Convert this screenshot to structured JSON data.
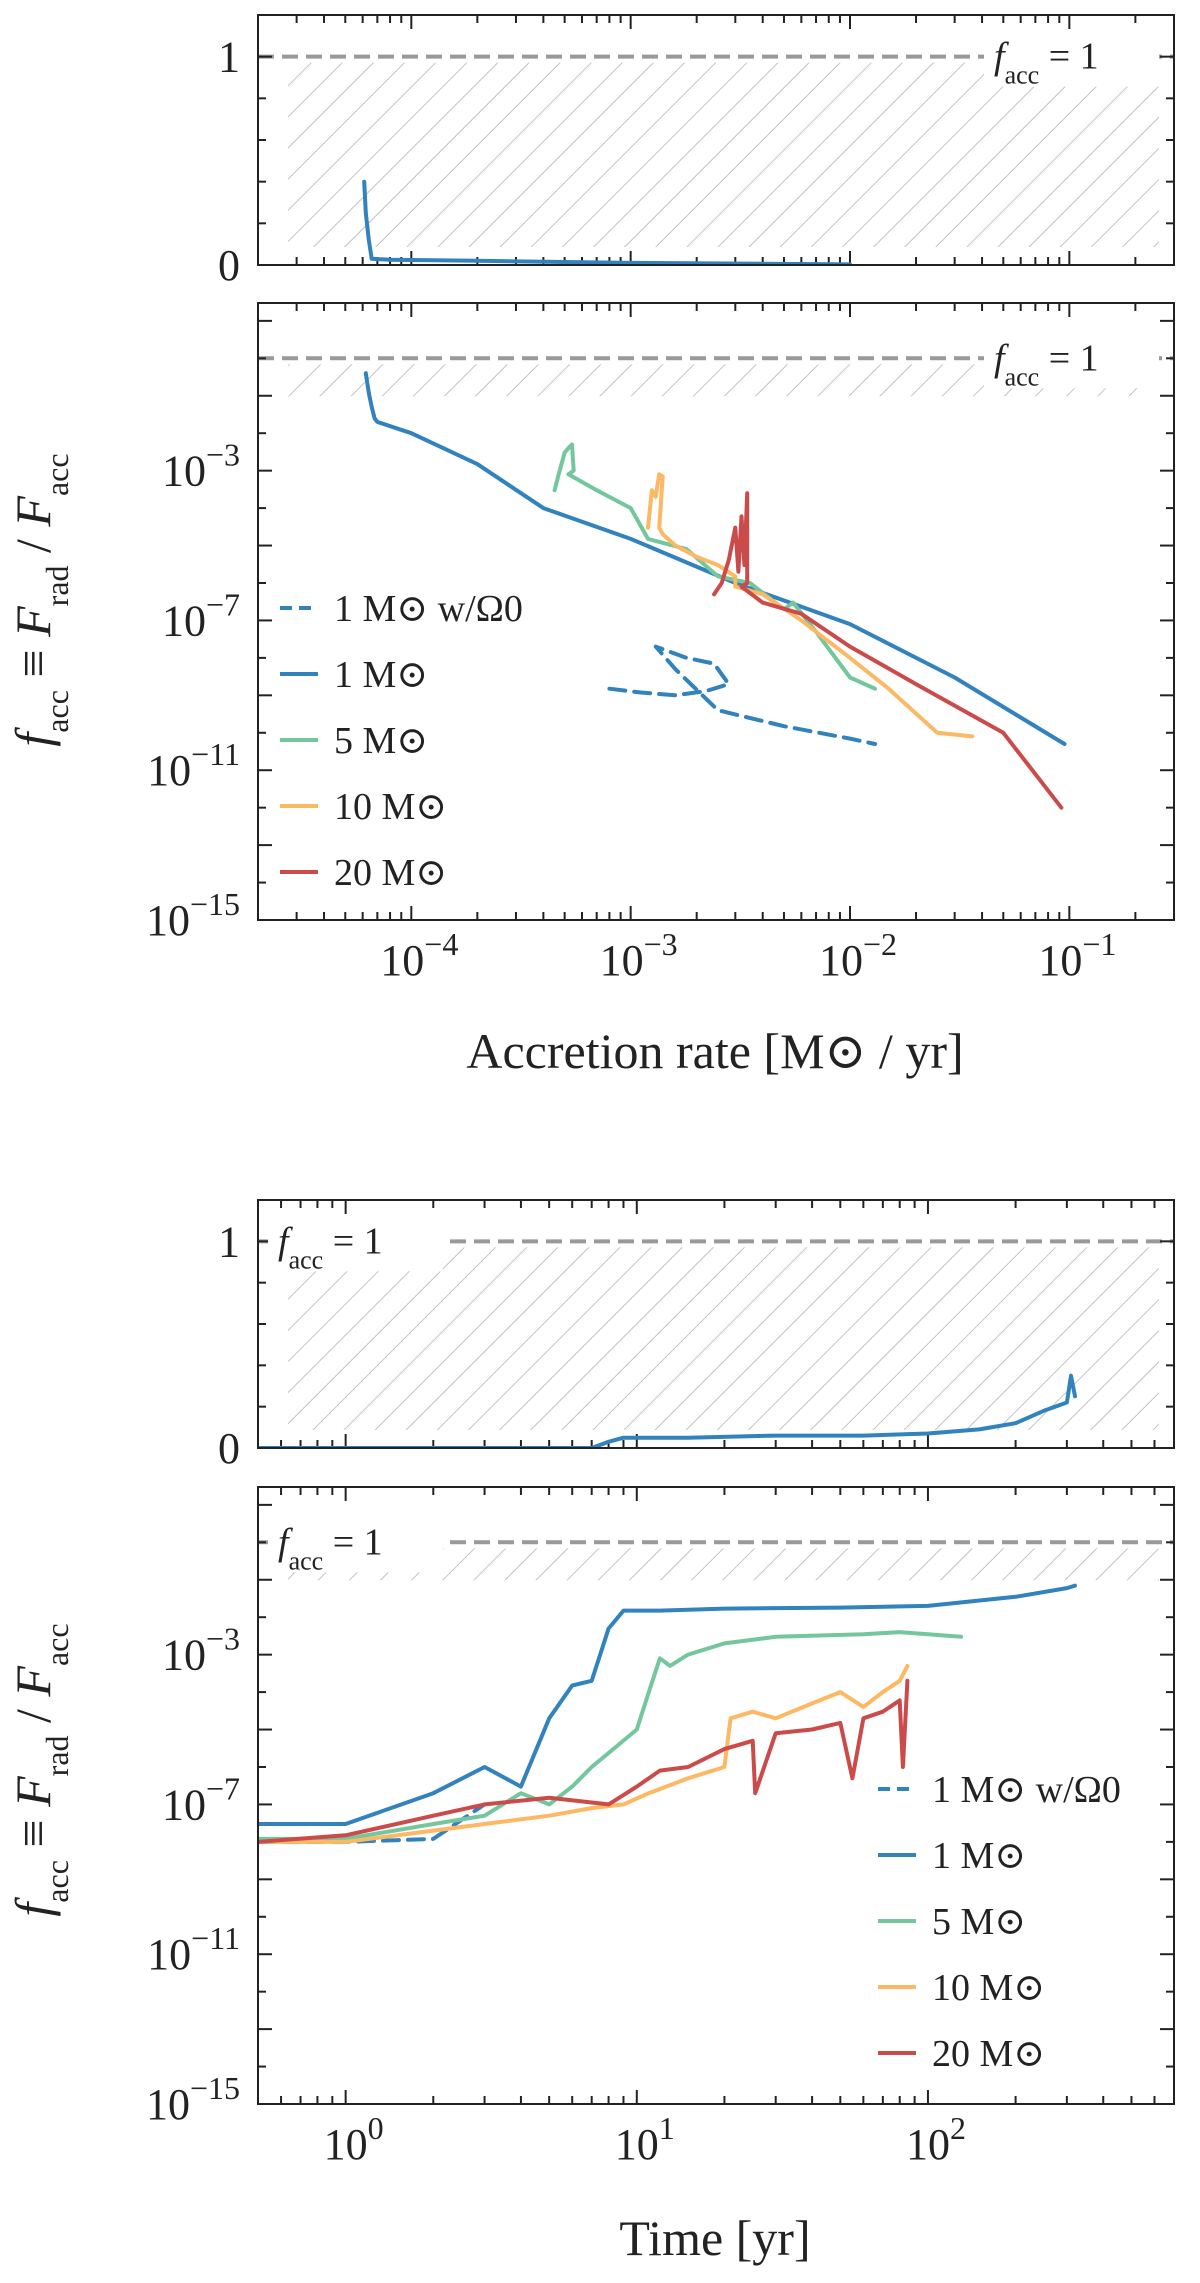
{
  "colors": {
    "blue": "#3182bd",
    "green": "#74c69d",
    "orange": "#fdb863",
    "red": "#cb4b4b",
    "threshold": "#999999",
    "hatch": "#aaaaaa"
  },
  "chart_data": [
    {
      "id": "acc_linear",
      "type": "line",
      "xscale": "log",
      "yscale": "linear",
      "xlim": [
        2e-05,
        0.3
      ],
      "ylim": [
        0,
        1.2
      ],
      "yticks": [
        {
          "v": 0,
          "label": "0"
        },
        {
          "v": 1,
          "label": "1"
        }
      ],
      "threshold": {
        "value": 1,
        "label_base": "f",
        "label_sub": "acc",
        "label_tail": " = 1",
        "label_position": "right"
      },
      "series": [
        {
          "name": "1 M⊙",
          "color": "blue",
          "dash": "",
          "x": [
            6.1e-05,
            6.2e-05,
            6.4e-05,
            6.6e-05,
            8e-05,
            0.0002,
            0.001,
            0.01
          ],
          "y": [
            0.4,
            0.25,
            0.12,
            0.03,
            0.025,
            0.02,
            0.01,
            0.003
          ]
        }
      ]
    },
    {
      "id": "acc_log",
      "type": "line",
      "xscale": "log",
      "yscale": "log",
      "xlim": [
        2e-05,
        0.3
      ],
      "ylim": [
        1e-15,
        30
      ],
      "xticks": [
        {
          "v": 0.0001,
          "base": "10",
          "exp": "−4"
        },
        {
          "v": 0.001,
          "base": "10",
          "exp": "−3"
        },
        {
          "v": 0.01,
          "base": "10",
          "exp": "−2"
        },
        {
          "v": 0.1,
          "base": "10",
          "exp": "−1"
        }
      ],
      "yticks": [
        {
          "v": 0.001,
          "base": "10",
          "exp": "−3"
        },
        {
          "v": 1e-07,
          "base": "10",
          "exp": "−7"
        },
        {
          "v": 1e-11,
          "base": "10",
          "exp": "−11"
        },
        {
          "v": 1e-15,
          "base": "10",
          "exp": "−15"
        }
      ],
      "xlabel": "Accretion rate [M⊙ / yr]",
      "ylabel": {
        "f": "f",
        "sub1": "acc",
        "mid": " ≡ ",
        "F1": "F",
        "sub2": "rad",
        "slash": " / ",
        "F2": "F",
        "sub3": "acc"
      },
      "threshold": {
        "value": 1,
        "label_base": "f",
        "label_sub": "acc",
        "label_tail": " = 1",
        "label_position": "right"
      },
      "legend": {
        "position": "center-left",
        "entries": [
          "1 M⊙ w/Ω0",
          "1 M⊙",
          "5 M⊙",
          "10 M⊙",
          "20 M⊙"
        ]
      },
      "series": [
        {
          "name": "1 M⊙ w/Ω0",
          "color": "blue",
          "dash": "16,9",
          "x": [
            0.0008,
            0.0011,
            0.0016,
            0.0022,
            0.0028,
            0.0024,
            0.0018,
            0.0013,
            0.0016,
            0.0025,
            0.005,
            0.01,
            0.013
          ],
          "y": [
            1.5e-09,
            1.2e-09,
            1e-09,
            1.3e-09,
            2e-09,
            7e-09,
            1e-08,
            2e-08,
            5e-09,
            4e-10,
            1.5e-10,
            7e-11,
            5e-11
          ]
        },
        {
          "name": "1 M⊙",
          "color": "blue",
          "dash": "",
          "x": [
            6.2e-05,
            6.4e-05,
            6.6e-05,
            6.8e-05,
            7e-05,
            0.0001,
            0.0002,
            0.0004,
            0.001,
            0.003,
            0.01,
            0.03,
            0.095
          ],
          "y": [
            0.4,
            0.12,
            0.05,
            0.025,
            0.02,
            0.01,
            0.0015,
            0.0001,
            1.5e-05,
            1e-06,
            8e-08,
            3e-09,
            5e-11
          ]
        },
        {
          "name": "5 M⊙",
          "color": "green",
          "dash": "",
          "x": [
            0.00045,
            0.00047,
            0.0005,
            0.00052,
            0.00054,
            0.00055,
            0.00052,
            0.0007,
            0.001,
            0.0012,
            0.0018,
            0.0025,
            0.0035,
            0.005,
            0.0055,
            0.007,
            0.01,
            0.013
          ],
          "y": [
            0.0003,
            0.0008,
            0.003,
            0.004,
            0.005,
            0.001,
            0.0008,
            0.0003,
            0.0001,
            1.5e-05,
            8e-06,
            1.5e-06,
            1e-06,
            2e-07,
            3e-07,
            5e-08,
            3e-09,
            1.5e-09
          ]
        },
        {
          "name": "10 M⊙",
          "color": "orange",
          "dash": "",
          "x": [
            0.0012,
            0.00125,
            0.0013,
            0.00135,
            0.0014,
            0.00135,
            0.0014,
            0.0016,
            0.002,
            0.0025,
            0.003,
            0.003,
            0.004,
            0.006,
            0.01,
            0.015,
            0.025,
            0.036
          ],
          "y": [
            3e-05,
            0.0003,
            0.0002,
            0.0008,
            0.0007,
            3e-05,
            2e-05,
            1e-05,
            5e-06,
            3e-06,
            1.5e-06,
            8e-07,
            5e-07,
            1e-07,
            1e-08,
            1.5e-09,
            1e-10,
            8e-11
          ]
        },
        {
          "name": "20 M⊙",
          "color": "red",
          "dash": "",
          "x": [
            0.0024,
            0.0026,
            0.0028,
            0.003,
            0.0031,
            0.0032,
            0.0033,
            0.0034,
            0.0034,
            0.0032,
            0.004,
            0.006,
            0.01,
            0.02,
            0.05,
            0.092
          ],
          "y": [
            5e-07,
            1e-06,
            4e-06,
            3e-05,
            2e-06,
            6e-05,
            3e-06,
            0.00025,
            1e-06,
            8e-07,
            3e-07,
            1.5e-07,
            2e-08,
            2e-09,
            1e-10,
            1e-12
          ]
        }
      ]
    },
    {
      "id": "time_linear",
      "type": "line",
      "xscale": "log",
      "yscale": "linear",
      "xlim": [
        0.5,
        700
      ],
      "ylim": [
        0,
        1.2
      ],
      "yticks": [
        {
          "v": 0,
          "label": "0"
        },
        {
          "v": 1,
          "label": "1"
        }
      ],
      "threshold": {
        "value": 1,
        "label_base": "f",
        "label_sub": "acc",
        "label_tail": " = 1",
        "label_position": "left"
      },
      "series": [
        {
          "name": "1 M⊙",
          "color": "blue",
          "dash": "",
          "x": [
            0.5,
            1,
            3,
            7,
            8,
            9,
            15,
            30,
            60,
            100,
            150,
            200,
            250,
            300,
            310,
            320
          ],
          "y": [
            0,
            0,
            0,
            0,
            0.03,
            0.05,
            0.05,
            0.06,
            0.06,
            0.07,
            0.09,
            0.12,
            0.18,
            0.22,
            0.35,
            0.25
          ]
        }
      ]
    },
    {
      "id": "time_log",
      "type": "line",
      "xscale": "log",
      "yscale": "log",
      "xlim": [
        0.5,
        700
      ],
      "ylim": [
        1e-15,
        30
      ],
      "xticks": [
        {
          "v": 1,
          "base": "10",
          "exp": "0"
        },
        {
          "v": 10,
          "base": "10",
          "exp": "1"
        },
        {
          "v": 100,
          "base": "10",
          "exp": "2"
        }
      ],
      "yticks": [
        {
          "v": 0.001,
          "base": "10",
          "exp": "−3"
        },
        {
          "v": 1e-07,
          "base": "10",
          "exp": "−7"
        },
        {
          "v": 1e-11,
          "base": "10",
          "exp": "−11"
        },
        {
          "v": 1e-15,
          "base": "10",
          "exp": "−15"
        }
      ],
      "xlabel": "Time [yr]",
      "ylabel": {
        "f": "f",
        "sub1": "acc",
        "mid": " ≡ ",
        "F1": "F",
        "sub2": "rad",
        "slash": " / ",
        "F2": "F",
        "sub3": "acc"
      },
      "threshold": {
        "value": 1,
        "label_base": "f",
        "label_sub": "acc",
        "label_tail": " = 1",
        "label_position": "left"
      },
      "legend": {
        "position": "lower-right",
        "entries": [
          "1 M⊙ w/Ω0",
          "1 M⊙",
          "5 M⊙",
          "10 M⊙",
          "20 M⊙"
        ]
      },
      "series": [
        {
          "name": "1 M⊙ w/Ω0",
          "color": "blue",
          "dash": "16,9",
          "x": [
            0.5,
            1,
            2,
            3
          ],
          "y": [
            1e-08,
            1e-08,
            1.2e-08,
            1e-07
          ]
        },
        {
          "name": "1 M⊙",
          "color": "blue",
          "dash": "",
          "x": [
            0.5,
            1,
            2,
            3,
            4,
            5,
            6,
            7,
            8,
            9,
            12,
            20,
            50,
            100,
            200,
            300,
            320
          ],
          "y": [
            3e-08,
            3e-08,
            2e-07,
            1e-06,
            3e-07,
            2e-05,
            0.00015,
            0.0002,
            0.005,
            0.015,
            0.015,
            0.017,
            0.018,
            0.02,
            0.035,
            0.06,
            0.07
          ]
        },
        {
          "name": "5 M⊙",
          "color": "green",
          "dash": "",
          "x": [
            0.5,
            1,
            2,
            3,
            4,
            5,
            6,
            7,
            10,
            11,
            12,
            13,
            15,
            20,
            30,
            60,
            80,
            130
          ],
          "y": [
            1.2e-08,
            1.2e-08,
            3e-08,
            5e-08,
            2e-07,
            1e-07,
            3e-07,
            1e-06,
            1e-05,
            0.0001,
            0.0008,
            0.0005,
            0.001,
            0.002,
            0.003,
            0.0035,
            0.004,
            0.003
          ]
        },
        {
          "name": "10 M⊙",
          "color": "orange",
          "dash": "",
          "x": [
            0.5,
            1,
            2,
            3,
            5,
            7,
            9,
            11,
            15,
            20,
            21,
            25,
            30,
            40,
            50,
            60,
            70,
            80,
            85
          ],
          "y": [
            1e-08,
            1e-08,
            2e-08,
            3e-08,
            5e-08,
            8e-08,
            1e-07,
            2e-07,
            5e-07,
            1e-06,
            2e-05,
            3e-05,
            2e-05,
            5e-05,
            0.0001,
            4e-05,
            0.0001,
            0.0002,
            0.0005
          ]
        },
        {
          "name": "20 M⊙",
          "color": "red",
          "dash": "",
          "x": [
            0.5,
            1,
            2,
            3,
            5,
            8,
            10,
            12,
            15,
            20,
            25,
            25.5,
            30,
            40,
            50,
            55,
            60,
            70,
            80,
            82,
            85
          ],
          "y": [
            1e-08,
            1.5e-08,
            5e-08,
            1e-07,
            1.5e-07,
            1e-07,
            3e-07,
            8e-07,
            1e-06,
            3e-06,
            5e-06,
            2e-07,
            8e-06,
            1e-05,
            1.5e-05,
            5e-07,
            2e-05,
            3e-05,
            6e-05,
            1e-06,
            0.0002
          ]
        }
      ]
    }
  ]
}
